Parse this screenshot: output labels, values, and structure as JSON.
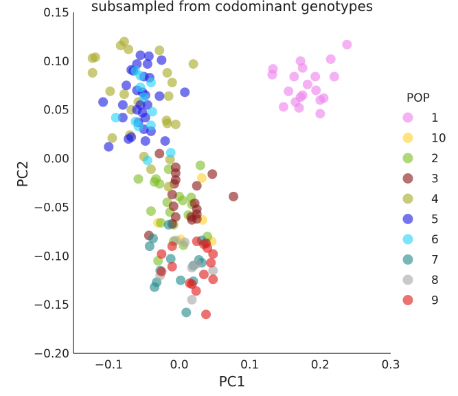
{
  "chart_data": {
    "type": "scatter",
    "title": "subsampled from codominant genotypes",
    "xlabel": "PC1",
    "ylabel": "PC2",
    "xlim": [
      -0.15,
      0.3
    ],
    "ylim": [
      -0.2,
      0.15
    ],
    "xticks": [
      -0.1,
      0.0,
      0.1,
      0.2,
      0.3
    ],
    "xtick_labels": [
      "−0.1",
      "0.0",
      "0.1",
      "0.2",
      "0.3"
    ],
    "yticks": [
      -0.2,
      -0.15,
      -0.1,
      -0.05,
      0.0,
      0.05,
      0.1,
      0.15
    ],
    "ytick_labels": [
      "−0.20",
      "−0.15",
      "−0.10",
      "−0.05",
      "0.00",
      "0.05",
      "0.10",
      "0.15"
    ],
    "grid": false,
    "legend": {
      "title": "POP",
      "placement": "right"
    },
    "series": [
      {
        "name": "1",
        "color": "#ee82ee",
        "points": [
          [
            0.238,
            0.117
          ],
          [
            0.215,
            0.102
          ],
          [
            0.172,
            0.1
          ],
          [
            0.133,
            0.092
          ],
          [
            0.175,
            0.093
          ],
          [
            0.132,
            0.086
          ],
          [
            0.163,
            0.084
          ],
          [
            0.193,
            0.084
          ],
          [
            0.22,
            0.084
          ],
          [
            0.182,
            0.076
          ],
          [
            0.155,
            0.069
          ],
          [
            0.194,
            0.07
          ],
          [
            0.175,
            0.065
          ],
          [
            0.172,
            0.063
          ],
          [
            0.205,
            0.062
          ],
          [
            0.2,
            0.06
          ],
          [
            0.165,
            0.058
          ],
          [
            0.148,
            0.053
          ],
          [
            0.17,
            0.052
          ],
          [
            0.2,
            0.046
          ]
        ]
      },
      {
        "name": "10",
        "color": "#ffd22e",
        "points": [
          [
            0.032,
            -0.02
          ],
          [
            0.033,
            -0.063
          ],
          [
            -0.03,
            -0.066
          ],
          [
            0.002,
            -0.083
          ],
          [
            0.046,
            -0.085
          ]
        ]
      },
      {
        "name": "2",
        "color": "#7fbf27",
        "points": [
          [
            0.03,
            -0.007
          ],
          [
            -0.015,
            -0.011
          ],
          [
            -0.058,
            -0.021
          ],
          [
            -0.033,
            -0.021
          ],
          [
            -0.035,
            -0.024
          ],
          [
            -0.028,
            -0.026
          ],
          [
            0.0,
            -0.039
          ],
          [
            0.017,
            -0.04
          ],
          [
            0.005,
            -0.043
          ],
          [
            -0.017,
            -0.045
          ],
          [
            0.018,
            -0.047
          ],
          [
            -0.04,
            -0.054
          ],
          [
            -0.013,
            -0.055
          ],
          [
            0.013,
            -0.058
          ],
          [
            -0.026,
            -0.066
          ],
          [
            -0.008,
            -0.068
          ],
          [
            -0.008,
            -0.085
          ],
          [
            0.006,
            -0.089
          ],
          [
            -0.03,
            -0.105
          ],
          [
            0.04,
            -0.08
          ]
        ]
      },
      {
        "name": "3",
        "color": "#8b1a1a",
        "points": [
          [
            -0.028,
            0.005
          ],
          [
            -0.005,
            -0.009
          ],
          [
            -0.005,
            -0.015
          ],
          [
            0.047,
            -0.016
          ],
          [
            -0.005,
            -0.022
          ],
          [
            -0.007,
            -0.026
          ],
          [
            0.025,
            -0.028
          ],
          [
            -0.01,
            -0.037
          ],
          [
            0.077,
            -0.039
          ],
          [
            0.022,
            -0.046
          ],
          [
            -0.008,
            -0.049
          ],
          [
            0.025,
            -0.052
          ],
          [
            0.025,
            -0.057
          ],
          [
            0.017,
            -0.06
          ],
          [
            0.025,
            -0.062
          ],
          [
            0.018,
            -0.063
          ],
          [
            -0.005,
            -0.06
          ],
          [
            -0.01,
            -0.067
          ],
          [
            -0.043,
            -0.079
          ],
          [
            0.038,
            -0.087
          ]
        ]
      },
      {
        "name": "4",
        "color": "#a9a92a",
        "points": [
          [
            -0.078,
            0.12
          ],
          [
            -0.083,
            0.116
          ],
          [
            -0.072,
            0.112
          ],
          [
            -0.119,
            0.104
          ],
          [
            -0.123,
            0.103
          ],
          [
            -0.028,
            0.111
          ],
          [
            0.02,
            0.097
          ],
          [
            -0.123,
            0.088
          ],
          [
            -0.017,
            0.088
          ],
          [
            -0.01,
            0.078
          ],
          [
            -0.098,
            0.069
          ],
          [
            -0.078,
            0.066
          ],
          [
            -0.015,
            0.064
          ],
          [
            -0.058,
            0.058
          ],
          [
            -0.068,
            0.05
          ],
          [
            -0.018,
            0.039
          ],
          [
            -0.017,
            0.036
          ],
          [
            -0.005,
            0.035
          ],
          [
            -0.07,
            0.024
          ],
          [
            -0.095,
            0.021
          ],
          [
            -0.05,
            0.002
          ],
          [
            -0.013,
            -0.001
          ],
          [
            -0.04,
            -0.011
          ],
          [
            -0.015,
            -0.029
          ]
        ]
      },
      {
        "name": "5",
        "color": "#1f1fe0",
        "points": [
          [
            -0.055,
            0.106
          ],
          [
            -0.043,
            0.105
          ],
          [
            -0.06,
            0.097
          ],
          [
            -0.045,
            0.097
          ],
          [
            -0.025,
            0.101
          ],
          [
            -0.065,
            0.09
          ],
          [
            -0.068,
            0.091
          ],
          [
            -0.05,
            0.084
          ],
          [
            -0.042,
            0.083
          ],
          [
            -0.075,
            0.075
          ],
          [
            -0.06,
            0.07
          ],
          [
            -0.048,
            0.065
          ],
          [
            -0.052,
            0.068
          ],
          [
            -0.028,
            0.064
          ],
          [
            0.008,
            0.068
          ],
          [
            -0.108,
            0.058
          ],
          [
            -0.08,
            0.055
          ],
          [
            -0.055,
            0.055
          ],
          [
            -0.045,
            0.055
          ],
          [
            -0.06,
            0.05
          ],
          [
            -0.052,
            0.047
          ],
          [
            -0.08,
            0.042
          ],
          [
            -0.048,
            0.042
          ],
          [
            -0.058,
            0.037
          ],
          [
            -0.05,
            0.03
          ],
          [
            -0.04,
            0.028
          ],
          [
            -0.068,
            0.022
          ],
          [
            -0.072,
            0.02
          ],
          [
            -0.048,
            0.018
          ],
          [
            -0.02,
            0.018
          ],
          [
            -0.1,
            0.012
          ]
        ]
      },
      {
        "name": "6",
        "color": "#29d4f5",
        "points": [
          [
            -0.062,
            0.09
          ],
          [
            -0.055,
            0.085
          ],
          [
            -0.04,
            0.078
          ],
          [
            -0.055,
            0.073
          ],
          [
            -0.05,
            0.063
          ],
          [
            -0.038,
            0.048
          ],
          [
            -0.09,
            0.042
          ],
          [
            -0.062,
            0.038
          ],
          [
            -0.04,
            0.034
          ],
          [
            -0.058,
            0.033
          ],
          [
            -0.012,
            0.006
          ],
          [
            -0.045,
            -0.002
          ]
        ]
      },
      {
        "name": "7",
        "color": "#238b8b",
        "points": [
          [
            0.032,
            -0.084
          ],
          [
            -0.037,
            -0.082
          ],
          [
            -0.042,
            -0.09
          ],
          [
            0.028,
            -0.104
          ],
          [
            0.032,
            -0.107
          ],
          [
            -0.012,
            -0.103
          ],
          [
            0.02,
            -0.11
          ],
          [
            -0.027,
            -0.115
          ],
          [
            0.002,
            -0.125
          ],
          [
            -0.032,
            -0.127
          ],
          [
            -0.035,
            -0.132
          ],
          [
            0.01,
            -0.158
          ],
          [
            -0.015,
            -0.068
          ],
          [
            0.02,
            -0.126
          ]
        ]
      },
      {
        "name": "8",
        "color": "#a8a8a8",
        "points": [
          [
            -0.005,
            -0.084
          ],
          [
            0.008,
            -0.086
          ],
          [
            0.018,
            -0.112
          ],
          [
            0.025,
            -0.108
          ],
          [
            0.048,
            -0.115
          ],
          [
            -0.027,
            -0.12
          ],
          [
            0.018,
            -0.145
          ]
        ]
      },
      {
        "name": "9",
        "color": "#e01b1b",
        "points": [
          [
            0.025,
            -0.085
          ],
          [
            0.035,
            -0.088
          ],
          [
            0.04,
            -0.092
          ],
          [
            -0.01,
            -0.09
          ],
          [
            -0.025,
            -0.098
          ],
          [
            0.048,
            -0.098
          ],
          [
            0.045,
            -0.107
          ],
          [
            -0.01,
            -0.111
          ],
          [
            -0.025,
            -0.116
          ],
          [
            0.035,
            -0.119
          ],
          [
            0.048,
            -0.124
          ],
          [
            0.015,
            -0.128
          ],
          [
            0.018,
            -0.129
          ],
          [
            0.024,
            -0.136
          ],
          [
            0.038,
            -0.16
          ]
        ]
      }
    ]
  }
}
